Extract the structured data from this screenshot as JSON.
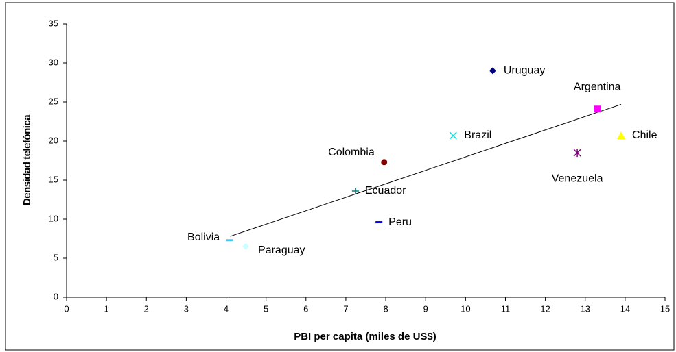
{
  "chart_data": {
    "type": "scatter",
    "xlabel": "PBI per capita (miles de US$)",
    "ylabel": "Densidad telefónica",
    "xlim": [
      0,
      15
    ],
    "xticks": [
      0,
      1,
      2,
      3,
      4,
      5,
      6,
      7,
      8,
      9,
      10,
      11,
      12,
      13,
      14,
      15
    ],
    "ylim": [
      0,
      35
    ],
    "yticks": [
      0,
      5,
      10,
      15,
      20,
      25,
      30,
      35
    ],
    "series": [
      {
        "name": "Uruguay",
        "color": "#000080",
        "marker": "diamond",
        "x": [
          10.68
        ],
        "values": [
          29.0
        ]
      },
      {
        "name": "Argentina",
        "color": "#ff00ff",
        "marker": "square",
        "x": [
          13.3
        ],
        "values": [
          24.1
        ]
      },
      {
        "name": "Chile",
        "color": "#ffff00",
        "marker": "triangle",
        "x": [
          13.9
        ],
        "values": [
          20.7
        ]
      },
      {
        "name": "Brazil",
        "color": "#00e0e0",
        "marker": "x",
        "x": [
          9.69
        ],
        "values": [
          20.7
        ]
      },
      {
        "name": "Venezuela",
        "color": "#800080",
        "marker": "star",
        "x": [
          12.8
        ],
        "values": [
          18.5
        ]
      },
      {
        "name": "Colombia",
        "color": "#800000",
        "marker": "circle",
        "x": [
          7.96
        ],
        "values": [
          17.3
        ]
      },
      {
        "name": "Ecuador",
        "color": "#008080",
        "marker": "plus",
        "x": [
          7.24
        ],
        "values": [
          13.6
        ]
      },
      {
        "name": "Peru",
        "color": "#0000ff",
        "marker": "dash",
        "x": [
          7.83
        ],
        "values": [
          9.6
        ]
      },
      {
        "name": "Bolivia",
        "color": "#33ccff",
        "marker": "dash",
        "x": [
          4.08
        ],
        "values": [
          7.3
        ]
      },
      {
        "name": "Paraguay",
        "color": "#ccffff",
        "marker": "diamond",
        "x": [
          4.49
        ],
        "values": [
          6.5
        ]
      }
    ],
    "trendline": {
      "x": [
        4.1,
        13.9
      ],
      "values": [
        7.8,
        24.7
      ]
    }
  }
}
